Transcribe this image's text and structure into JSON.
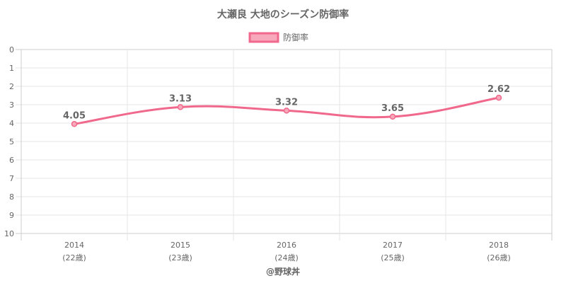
{
  "chart_data": {
    "type": "line",
    "title": "大瀬良 大地のシーズン防御率",
    "legend": "防御率",
    "categories": [
      "2014",
      "2015",
      "2016",
      "2017",
      "2018"
    ],
    "subcategories": [
      "(22歳)",
      "(23歳)",
      "(24歳)",
      "(25歳)",
      "(26歳)"
    ],
    "series": [
      {
        "name": "防御率",
        "values": [
          4.05,
          3.13,
          3.32,
          3.65,
          2.62
        ]
      }
    ],
    "data_labels": [
      "4.05",
      "3.13",
      "3.32",
      "3.65",
      "2.62"
    ],
    "yticks": [
      "0",
      "1",
      "2",
      "3",
      "4",
      "5",
      "6",
      "7",
      "8",
      "9",
      "10"
    ],
    "ylim": [
      0,
      10
    ],
    "y_reversed": true,
    "grid": true,
    "legend_position": "top",
    "line_color": "#f0688c",
    "legend_fill": "#f7a8ba"
  },
  "credit": "@野球丼"
}
